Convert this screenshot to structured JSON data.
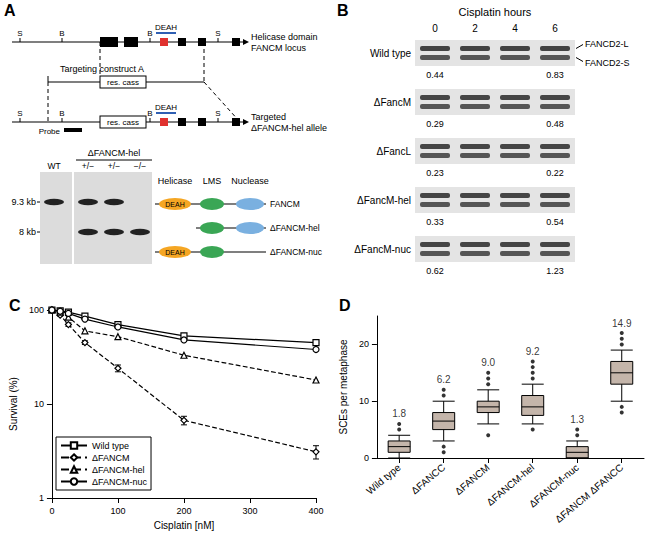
{
  "panel_a": {
    "panel_label": "A",
    "locus": {
      "label_lines": [
        "Helicase domain",
        "FANCM locus"
      ],
      "sites": [
        "S",
        "B",
        "B",
        "S"
      ],
      "motif": "DEAH"
    },
    "construct": {
      "label": "Targeting construct A",
      "cassette": "res. cass",
      "probe": "Probe"
    },
    "allele": {
      "label_lines": [
        "Targeted",
        "ΔFANCM-hel allele"
      ],
      "sites": [
        "S",
        "B",
        "B",
        "S"
      ],
      "motif": "DEAH"
    },
    "gel": {
      "group": "ΔFANCM-hel",
      "lanes": [
        "WT",
        "+/−",
        "+/−",
        "−/−"
      ],
      "markers": [
        "9.3 kb",
        "8 kb"
      ],
      "bands": [
        [
          "9.3 kb"
        ],
        [
          "9.3 kb",
          "8 kb"
        ],
        [
          "9.3 kb",
          "8 kb"
        ],
        [
          "8 kb"
        ]
      ]
    },
    "domains": {
      "headers": [
        "Helicase",
        "LMS",
        "Nuclease"
      ],
      "motif": "DEAH",
      "proteins": [
        {
          "name": "FANCM",
          "parts": [
            "Helicase",
            "LMS",
            "Nuclease"
          ]
        },
        {
          "name": "ΔFANCM-hel",
          "parts": [
            "LMS",
            "Nuclease"
          ]
        },
        {
          "name": "ΔFANCM-nuc",
          "parts": [
            "Helicase",
            "LMS"
          ]
        }
      ]
    }
  },
  "panel_b": {
    "panel_label": "B",
    "title": "Cisplatin hours",
    "hours": [
      0,
      2,
      4,
      6
    ],
    "bands": [
      "FANCD2-L",
      "FANCD2-S"
    ],
    "rows": [
      {
        "name": "Wild type",
        "ratios": [
          0.44,
          0.83
        ]
      },
      {
        "name": "ΔFancM",
        "ratios": [
          0.29,
          0.48
        ]
      },
      {
        "name": "ΔFancL",
        "ratios": [
          0.23,
          0.22
        ]
      },
      {
        "name": "ΔFancM-hel",
        "ratios": [
          0.33,
          0.54
        ]
      },
      {
        "name": "ΔFancM-nuc",
        "ratios": [
          0.62,
          1.23
        ]
      }
    ]
  },
  "chart_data": [
    {
      "type": "line",
      "panel_label": "C",
      "x_label": "Cisplatin [nM]",
      "y_label": "Survival (%)",
      "x": [
        0,
        12.5,
        25,
        50,
        100,
        200,
        400
      ],
      "series": [
        {
          "name": "Wild type",
          "color": "#000000",
          "marker": "square",
          "line_style": "solid",
          "values": [
            100,
            98,
            95,
            86,
            70,
            53,
            45
          ]
        },
        {
          "name": "ΔFANCM",
          "color": "#000000",
          "marker": "diamond",
          "line_style": "dashed",
          "values": [
            100,
            88,
            70,
            45,
            24,
            6.7,
            3.1
          ],
          "errors": [
            0,
            2,
            3,
            2,
            2,
            0.7,
            0.5
          ]
        },
        {
          "name": "ΔFANCM-hel",
          "color": "#000000",
          "marker": "triangle",
          "line_style": "dashed",
          "values": [
            100,
            95,
            84,
            60,
            52,
            33,
            18
          ]
        },
        {
          "name": "ΔFANCM-nuc",
          "color": "#000000",
          "marker": "circle",
          "line_style": "solid",
          "values": [
            100,
            97,
            92,
            80,
            66,
            48,
            38
          ]
        }
      ],
      "xlim": [
        0,
        400
      ],
      "xticks": [
        0,
        100,
        200,
        300,
        400
      ],
      "ylim": [
        1,
        100
      ],
      "yticks": [
        1,
        10,
        100
      ],
      "log": "y",
      "grid": false,
      "legend": "lower left"
    },
    {
      "type": "boxplot",
      "panel_label": "D",
      "y_label": "SCEs per metaphase",
      "categories": [
        "Wild type",
        "ΔFANCC",
        "ΔFANCM",
        "ΔFANCM-hel",
        "ΔFANCM-nuc",
        "ΔFANCM ΔFANCC"
      ],
      "boxes": [
        [
          0,
          1,
          2,
          3,
          4
        ],
        [
          3,
          5,
          6.5,
          8,
          10
        ],
        [
          6,
          8,
          9,
          10,
          12
        ],
        [
          6,
          7.5,
          9,
          11,
          13
        ],
        [
          0,
          0,
          1,
          2,
          3
        ],
        [
          10,
          13,
          15,
          17,
          19
        ]
      ],
      "outliers": [
        [
          5,
          6
        ],
        [
          1,
          2,
          11,
          12
        ],
        [
          4,
          13,
          14,
          15
        ],
        [
          5,
          14,
          15,
          16,
          17
        ],
        [
          4,
          5
        ],
        [
          8,
          9,
          20,
          21,
          22
        ]
      ],
      "annotations": [
        "1.8",
        "6.2",
        "9.0",
        "9.2",
        "1.3",
        "14.9"
      ],
      "color": "#c4b5aa",
      "ylim": [
        0,
        25
      ],
      "yticks": [
        0,
        10,
        20
      ],
      "grid": false
    }
  ]
}
